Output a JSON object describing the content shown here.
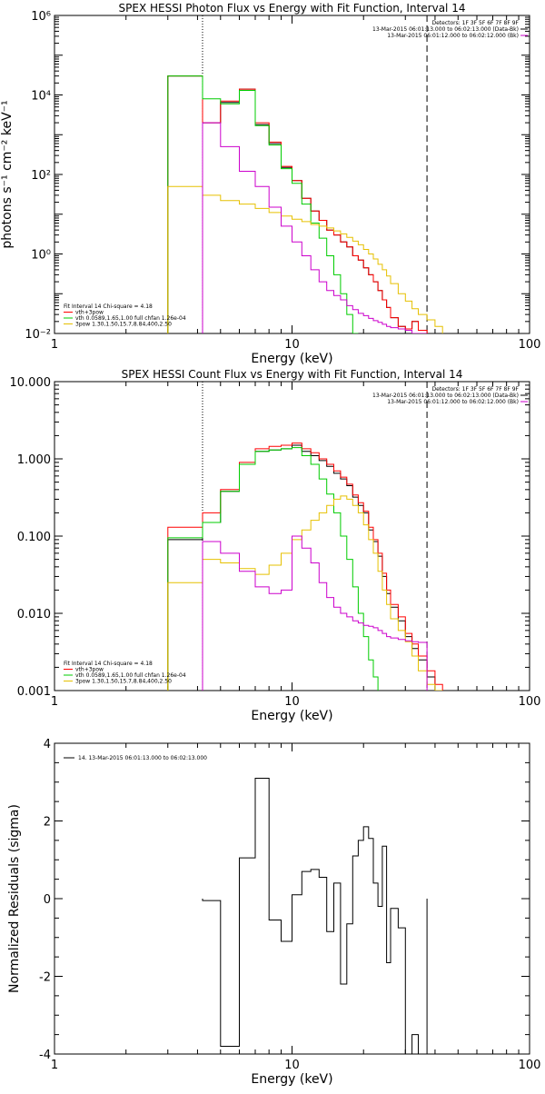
{
  "chart_data": [
    {
      "type": "line",
      "title": "SPEX HESSI Photon Flux vs Energy with Fit Function, Interval 14",
      "xlabel": "Energy (keV)",
      "ylabel": "photons s⁻¹ cm⁻² keV⁻¹",
      "xscale": "log",
      "yscale": "log",
      "xlim": [
        1,
        100
      ],
      "ylim": [
        0.01,
        1000000
      ],
      "x_ticks": [
        1,
        10,
        100
      ],
      "x_tick_labels": [
        "1",
        "10",
        "100"
      ],
      "y_ticks": [
        0.01,
        1,
        100,
        10000,
        1000000
      ],
      "y_tick_labels": [
        "10⁻²",
        "10⁰",
        "10²",
        "10⁴",
        "10⁶"
      ],
      "vlines": [
        {
          "x": 4.2,
          "style": "dotted"
        },
        {
          "x": 37,
          "style": "dashed"
        }
      ],
      "legend_right": {
        "position": "top-right",
        "lines": [
          "Detectors: 1F 3F 5F 6F 7F 8F 9F",
          "13-Mar-2015 06:01:13.000 to 06:02:13.000 (Data-Bk)",
          "13-Mar-2015 06:01:12.000 to 06:02:12.000 (Bk)"
        ],
        "colors": [
          "#000000",
          "#cc00cc"
        ]
      },
      "legend_left": {
        "position": "bottom-left",
        "lines": [
          "Fit Interval 14    Chi-square = 4.18",
          "vth+3pow",
          "vth 0.0589,1.65,1.00  full chfan 1.26e-04",
          "3pow 1.30,1.50,15.7,8.84,400,2.50"
        ],
        "colors": [
          "",
          "#ff0000",
          "#00cc00",
          "#e6c000"
        ]
      },
      "bin_edges": [
        3.0,
        4.2,
        5.0,
        6.0,
        7.0,
        8.0,
        9.0,
        10.0,
        11.0,
        12.0,
        13.0,
        14.0,
        15.0,
        16.0,
        17.0,
        18.0,
        19.0,
        20.0,
        21.0,
        22.0,
        23.0,
        24.0,
        25.0,
        26.0,
        28.0,
        30.0,
        32.0,
        34.0,
        37.0,
        40.0,
        43.0
      ],
      "series": [
        {
          "name": "Data-Bk",
          "color": "#000000",
          "values": [
            30000,
            2000,
            6500,
            14000,
            1800,
            600,
            150,
            70,
            25,
            12,
            7,
            4,
            3,
            2,
            1.5,
            0.9,
            0.7,
            0.45,
            0.3,
            0.2,
            0.12,
            0.07,
            0.045,
            0.025,
            0.015,
            0.013,
            0.02,
            0.012,
            null,
            null
          ]
        },
        {
          "name": "vth+3pow",
          "color": "#ff0000",
          "values": [
            30000,
            2000,
            7000,
            14000,
            2000,
            650,
            160,
            70,
            25,
            12,
            7,
            4,
            3,
            2,
            1.5,
            0.9,
            0.7,
            0.45,
            0.3,
            0.2,
            0.12,
            0.07,
            0.045,
            0.025,
            0.015,
            0.013,
            0.02,
            0.012,
            null,
            null
          ]
        },
        {
          "name": "vth",
          "color": "#00cc00",
          "values": [
            30000,
            8000,
            6000,
            13000,
            1700,
            550,
            140,
            60,
            18,
            6,
            2.5,
            0.9,
            0.3,
            0.1,
            0.03,
            0.01,
            null,
            null,
            null,
            null,
            null,
            null,
            null,
            null,
            null,
            null,
            null,
            null,
            null,
            null
          ]
        },
        {
          "name": "3pow",
          "color": "#e6c000",
          "values": [
            50,
            30,
            22,
            18,
            14,
            11,
            9,
            7.5,
            6.5,
            5.5,
            5,
            4.5,
            3.8,
            3.2,
            2.6,
            2.1,
            1.7,
            1.3,
            1.0,
            0.75,
            0.55,
            0.4,
            0.28,
            0.18,
            0.1,
            0.065,
            0.042,
            0.03,
            0.022,
            0.015
          ]
        },
        {
          "name": "Bk",
          "color": "#cc00cc",
          "values": [
            null,
            2000,
            500,
            120,
            50,
            15,
            5,
            2,
            0.9,
            0.4,
            0.2,
            0.12,
            0.09,
            0.07,
            0.05,
            0.04,
            0.032,
            0.028,
            0.024,
            0.021,
            0.019,
            0.017,
            0.015,
            0.014,
            0.013,
            0.012,
            0.01,
            0.009,
            null,
            null
          ]
        }
      ]
    },
    {
      "type": "line",
      "title": "SPEX HESSI Count Flux vs Energy with Fit Function, Interval 14",
      "xlabel": "Energy (keV)",
      "ylabel": "",
      "xscale": "log",
      "yscale": "log",
      "xlim": [
        1,
        100
      ],
      "ylim": [
        0.001,
        10
      ],
      "x_ticks": [
        1,
        10,
        100
      ],
      "x_tick_labels": [
        "1",
        "10",
        "100"
      ],
      "y_ticks": [
        0.001,
        0.01,
        0.1,
        1,
        10
      ],
      "y_tick_labels": [
        "0.001",
        "0.010",
        "0.100",
        "1.000",
        "10.000"
      ],
      "vlines": [
        {
          "x": 4.2,
          "style": "dotted"
        },
        {
          "x": 37,
          "style": "dashed"
        }
      ],
      "legend_right": {
        "position": "top-right",
        "lines": [
          "Detectors: 1F 3F 5F 6F 7F 8F 9F",
          "13-Mar-2015 06:01:13.000 to 06:02:13.000 (Data-Bk)",
          "13-Mar-2015 06:01:12.000 to 06:02:12.000 (Bk)"
        ],
        "colors": [
          "#000000",
          "#cc00cc"
        ]
      },
      "legend_left": {
        "position": "bottom-left",
        "lines": [
          "Fit Interval 14    Chi-square = 4.18",
          "vth+3pow",
          "vth 0.0589,1.65,1.00  full chfan 1.26e-04",
          "3pow 1.30,1.50,15.7,8.84,400,2.50"
        ],
        "colors": [
          "",
          "#ff0000",
          "#00cc00",
          "#e6c000"
        ]
      },
      "bin_edges": [
        3.0,
        4.2,
        5.0,
        6.0,
        7.0,
        8.0,
        9.0,
        10.0,
        11.0,
        12.0,
        13.0,
        14.0,
        15.0,
        16.0,
        17.0,
        18.0,
        19.0,
        20.0,
        21.0,
        22.0,
        23.0,
        24.0,
        25.0,
        26.0,
        28.0,
        30.0,
        32.0,
        34.0,
        37.0,
        40.0,
        43.0
      ],
      "series": [
        {
          "name": "Data-Bk",
          "color": "#000000",
          "values": [
            0.09,
            0.15,
            0.38,
            0.85,
            1.25,
            1.3,
            1.35,
            1.5,
            1.25,
            1.1,
            0.95,
            0.8,
            0.65,
            0.55,
            0.45,
            0.32,
            0.25,
            0.2,
            0.12,
            0.085,
            0.055,
            0.03,
            0.018,
            0.012,
            0.008,
            0.005,
            0.0035,
            0.0025,
            0.0015,
            0.001
          ]
        },
        {
          "name": "vth+3pow",
          "color": "#ff0000",
          "values": [
            0.13,
            0.2,
            0.4,
            0.9,
            1.35,
            1.45,
            1.5,
            1.6,
            1.35,
            1.2,
            1.0,
            0.85,
            0.7,
            0.58,
            0.47,
            0.34,
            0.27,
            0.21,
            0.13,
            0.09,
            0.06,
            0.033,
            0.02,
            0.013,
            0.009,
            0.0055,
            0.004,
            0.0028,
            0.0018,
            0.0012
          ]
        },
        {
          "name": "vth",
          "color": "#00cc00",
          "values": [
            0.095,
            0.15,
            0.38,
            0.85,
            1.25,
            1.3,
            1.35,
            1.4,
            1.1,
            0.85,
            0.55,
            0.35,
            0.2,
            0.1,
            0.05,
            0.022,
            0.01,
            0.005,
            0.0025,
            0.0015,
            null,
            null,
            null,
            null,
            null,
            null,
            null,
            null,
            null,
            null
          ]
        },
        {
          "name": "3pow",
          "color": "#e6c000",
          "values": [
            0.025,
            0.05,
            0.045,
            0.038,
            0.032,
            0.042,
            0.06,
            0.09,
            0.12,
            0.16,
            0.2,
            0.25,
            0.3,
            0.33,
            0.3,
            0.25,
            0.2,
            0.14,
            0.09,
            0.06,
            0.035,
            0.02,
            0.013,
            0.0085,
            0.006,
            0.0043,
            0.0028,
            0.0018,
            0.0012,
            0.0008
          ]
        },
        {
          "name": "Bk",
          "color": "#cc00cc",
          "values": [
            null,
            0.085,
            0.06,
            0.035,
            0.022,
            0.018,
            0.02,
            0.1,
            0.07,
            0.045,
            0.025,
            0.016,
            0.012,
            0.01,
            0.009,
            0.008,
            0.0075,
            0.007,
            0.0068,
            0.0065,
            0.006,
            0.0055,
            0.005,
            0.0048,
            0.0046,
            0.0044,
            0.0043,
            0.0042,
            null,
            null
          ]
        }
      ]
    },
    {
      "type": "line",
      "title": "",
      "xlabel": "Energy (keV)",
      "ylabel": "Normalized Residuals (sigma)",
      "xscale": "log",
      "yscale": "linear",
      "xlim": [
        1,
        100
      ],
      "ylim": [
        -4,
        4
      ],
      "x_ticks": [
        1,
        10,
        100
      ],
      "x_tick_labels": [
        "1",
        "10",
        "100"
      ],
      "y_ticks": [
        -4,
        -2,
        0,
        2,
        4
      ],
      "y_tick_labels": [
        "-4",
        "-2",
        "0",
        "2",
        "4"
      ],
      "legend": {
        "position": "top-left",
        "text": "14. 13-Mar-2015 06:01:13.000 to 06:02:13.000",
        "color": "#000000"
      },
      "bin_edges": [
        4.2,
        5.0,
        6.0,
        7.0,
        8.0,
        9.0,
        10.0,
        11.0,
        12.0,
        13.0,
        14.0,
        15.0,
        16.0,
        17.0,
        18.0,
        19.0,
        20.0,
        21.0,
        22.0,
        23.0,
        24.0,
        25.0,
        26.0,
        28.0,
        30.0,
        32.0,
        34.0,
        37.0
      ],
      "series": [
        {
          "name": "Residuals",
          "color": "#000000",
          "values": [
            -0.05,
            -3.8,
            1.05,
            3.1,
            -0.55,
            -1.1,
            0.1,
            0.7,
            0.75,
            0.55,
            -0.85,
            0.4,
            -2.2,
            -0.65,
            1.1,
            1.5,
            1.85,
            1.55,
            0.4,
            -0.2,
            1.35,
            -1.65,
            -0.25,
            -0.75,
            -4.0,
            -3.5,
            -4.0
          ]
        }
      ]
    }
  ]
}
